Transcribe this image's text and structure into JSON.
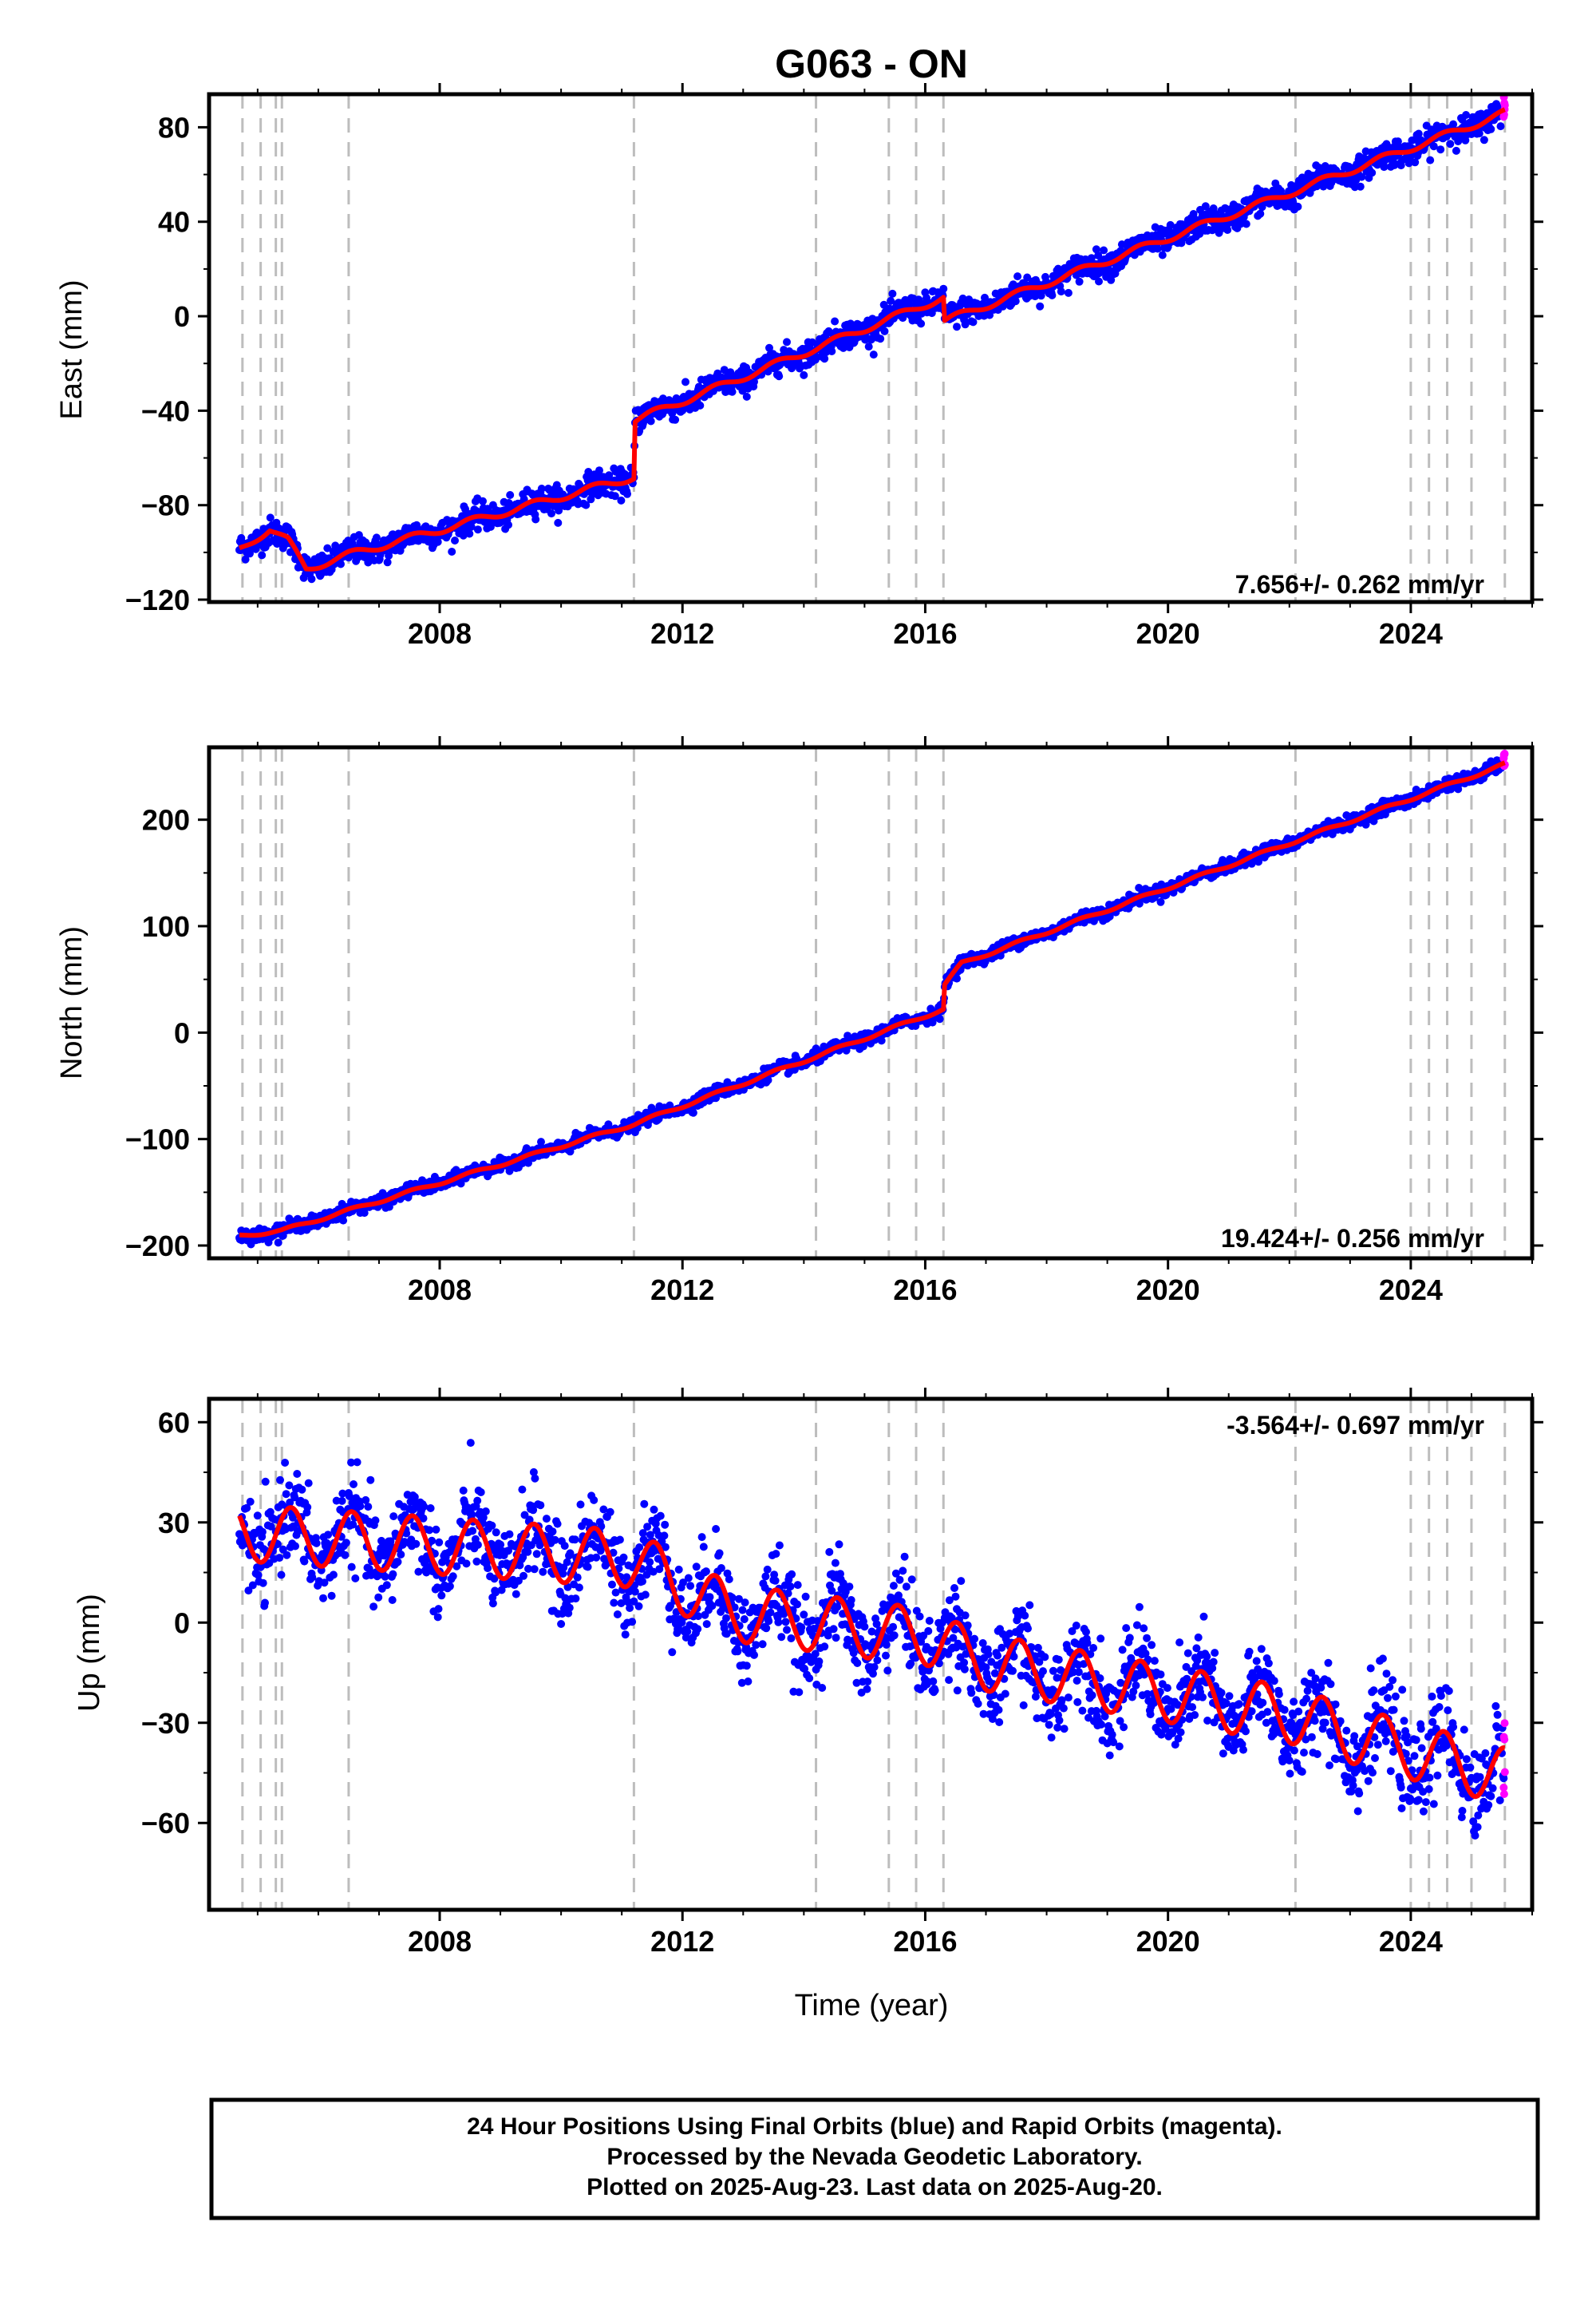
{
  "title": "G063 - ON",
  "footer": {
    "line1": "24 Hour Positions Using Final Orbits (blue) and Rapid Orbits (magenta).",
    "line2": "Processed by the Nevada Geodetic Laboratory.",
    "line3": "Plotted on 2025-Aug-23. Last data on 2025-Aug-20."
  },
  "colors": {
    "final": "#0000ff",
    "rapid": "#ff00ff",
    "model": "#ff0000",
    "event_line": "#bdbdbd",
    "axis": "#000000"
  },
  "chart_data": [
    {
      "type": "scatter",
      "name": "east",
      "ylabel": "East (mm)",
      "rate_text": "7.656+/- 0.262 mm/yr",
      "xlim": [
        2004.2,
        2026.0
      ],
      "ylim": [
        -121,
        94
      ],
      "xticks": [
        2008,
        2012,
        2016,
        2020,
        2024
      ],
      "xtick_labels": [
        "2008",
        "2012",
        "2016",
        "2020",
        "2024"
      ],
      "yticks": [
        -120,
        -80,
        -40,
        0,
        40,
        80
      ],
      "ytick_labels": [
        "−120",
        "−80",
        "−40",
        "0",
        "40",
        "80"
      ],
      "data_range_years": [
        2004.7,
        2025.55
      ],
      "events": [
        2004.75,
        2005.05,
        2005.3,
        2005.4,
        2006.5,
        2011.2,
        2014.2,
        2015.4,
        2015.85,
        2016.3,
        2022.1,
        2024.0,
        2024.3,
        2024.6,
        2025.0,
        2025.55
      ],
      "trend_anchors": [
        [
          2004.7,
          -99
        ],
        [
          2005.2,
          -90
        ],
        [
          2005.5,
          -95
        ],
        [
          2005.8,
          -107
        ],
        [
          2006.5,
          -101
        ],
        [
          2011.2,
          -68
        ],
        [
          2011.22,
          -44
        ],
        [
          2016.3,
          8
        ],
        [
          2016.32,
          -2
        ],
        [
          2025.55,
          86
        ]
      ],
      "noise_sd_mm": 2.8,
      "seasonal_amp_mm": 1.5
    },
    {
      "type": "scatter",
      "name": "north",
      "ylabel": "North (mm)",
      "rate_text": "19.424+/- 0.256 mm/yr",
      "xlim": [
        2004.2,
        2026.0
      ],
      "ylim": [
        -212,
        268
      ],
      "xticks": [
        2008,
        2012,
        2016,
        2020,
        2024
      ],
      "xtick_labels": [
        "2008",
        "2012",
        "2016",
        "2020",
        "2024"
      ],
      "yticks": [
        -200,
        -100,
        0,
        100,
        200
      ],
      "ytick_labels": [
        "−200",
        "−100",
        "0",
        "100",
        "200"
      ],
      "data_range_years": [
        2004.7,
        2025.55
      ],
      "events": [
        2004.75,
        2005.05,
        2005.3,
        2005.4,
        2006.5,
        2011.2,
        2014.2,
        2015.4,
        2015.85,
        2016.3,
        2022.1,
        2024.0,
        2024.3,
        2024.6,
        2025.0,
        2025.55
      ],
      "trend_anchors": [
        [
          2004.7,
          -191
        ],
        [
          2005.4,
          -186
        ],
        [
          2011.2,
          -86
        ],
        [
          2016.3,
          22
        ],
        [
          2016.32,
          45
        ],
        [
          2016.6,
          65
        ],
        [
          2025.55,
          252
        ]
      ],
      "noise_sd_mm": 3.0,
      "seasonal_amp_mm": 1.5
    },
    {
      "type": "scatter",
      "name": "up",
      "ylabel": "Up (mm)",
      "xlabel": "Time (year)",
      "rate_text": "-3.564+/- 0.697 mm/yr",
      "xlim": [
        2004.2,
        2026.0
      ],
      "ylim": [
        -86,
        67
      ],
      "xticks": [
        2008,
        2012,
        2016,
        2020,
        2024
      ],
      "xtick_labels": [
        "2008",
        "2012",
        "2016",
        "2020",
        "2024"
      ],
      "yticks": [
        -60,
        -30,
        0,
        30,
        60
      ],
      "ytick_labels": [
        "−60",
        "−30",
        "0",
        "30",
        "60"
      ],
      "data_range_years": [
        2004.7,
        2025.55
      ],
      "events": [
        2004.75,
        2005.05,
        2005.3,
        2005.4,
        2006.5,
        2011.2,
        2014.2,
        2015.4,
        2015.85,
        2016.3,
        2022.1,
        2024.0,
        2024.3,
        2024.6,
        2025.0,
        2025.55
      ],
      "trend_anchors": [
        [
          2004.7,
          27
        ],
        [
          2011.2,
          19
        ],
        [
          2012.8,
          3
        ],
        [
          2016.3,
          -5
        ],
        [
          2016.7,
          -11
        ],
        [
          2022.1,
          -28
        ],
        [
          2022.9,
          -33
        ],
        [
          2025.55,
          -46
        ]
      ],
      "noise_sd_mm": 6.5,
      "seasonal_amp_mm": 8.5
    }
  ]
}
